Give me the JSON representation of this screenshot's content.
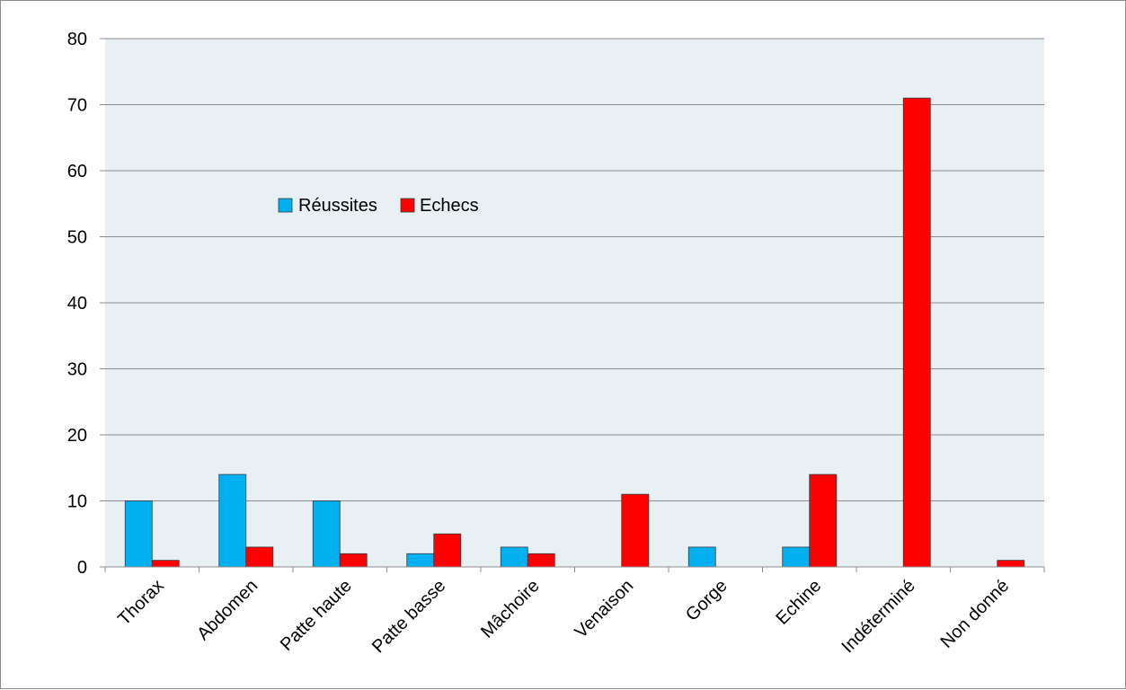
{
  "chart_data": {
    "type": "bar",
    "categories": [
      "Thorax",
      "Abdomen",
      "Patte haute",
      "Patte basse",
      "Mâchoire",
      "Venaison",
      "Gorge",
      "Echine",
      "Indéterminé",
      "Non donné"
    ],
    "series": [
      {
        "name": "Réussites",
        "values": [
          10,
          14,
          10,
          2,
          3,
          0,
          3,
          3,
          0,
          0
        ],
        "color": "#00b0f0"
      },
      {
        "name": "Echecs",
        "values": [
          1,
          3,
          2,
          5,
          2,
          11,
          0,
          14,
          71,
          1
        ],
        "color": "#ff0000"
      }
    ],
    "ylim": [
      0,
      80
    ],
    "yticks": [
      "0",
      "10",
      "20",
      "30",
      "40",
      "50",
      "60",
      "70",
      "80"
    ],
    "grid": true,
    "plot_background": "#e8f0f3",
    "legend_position": "upper-left inside plot"
  }
}
